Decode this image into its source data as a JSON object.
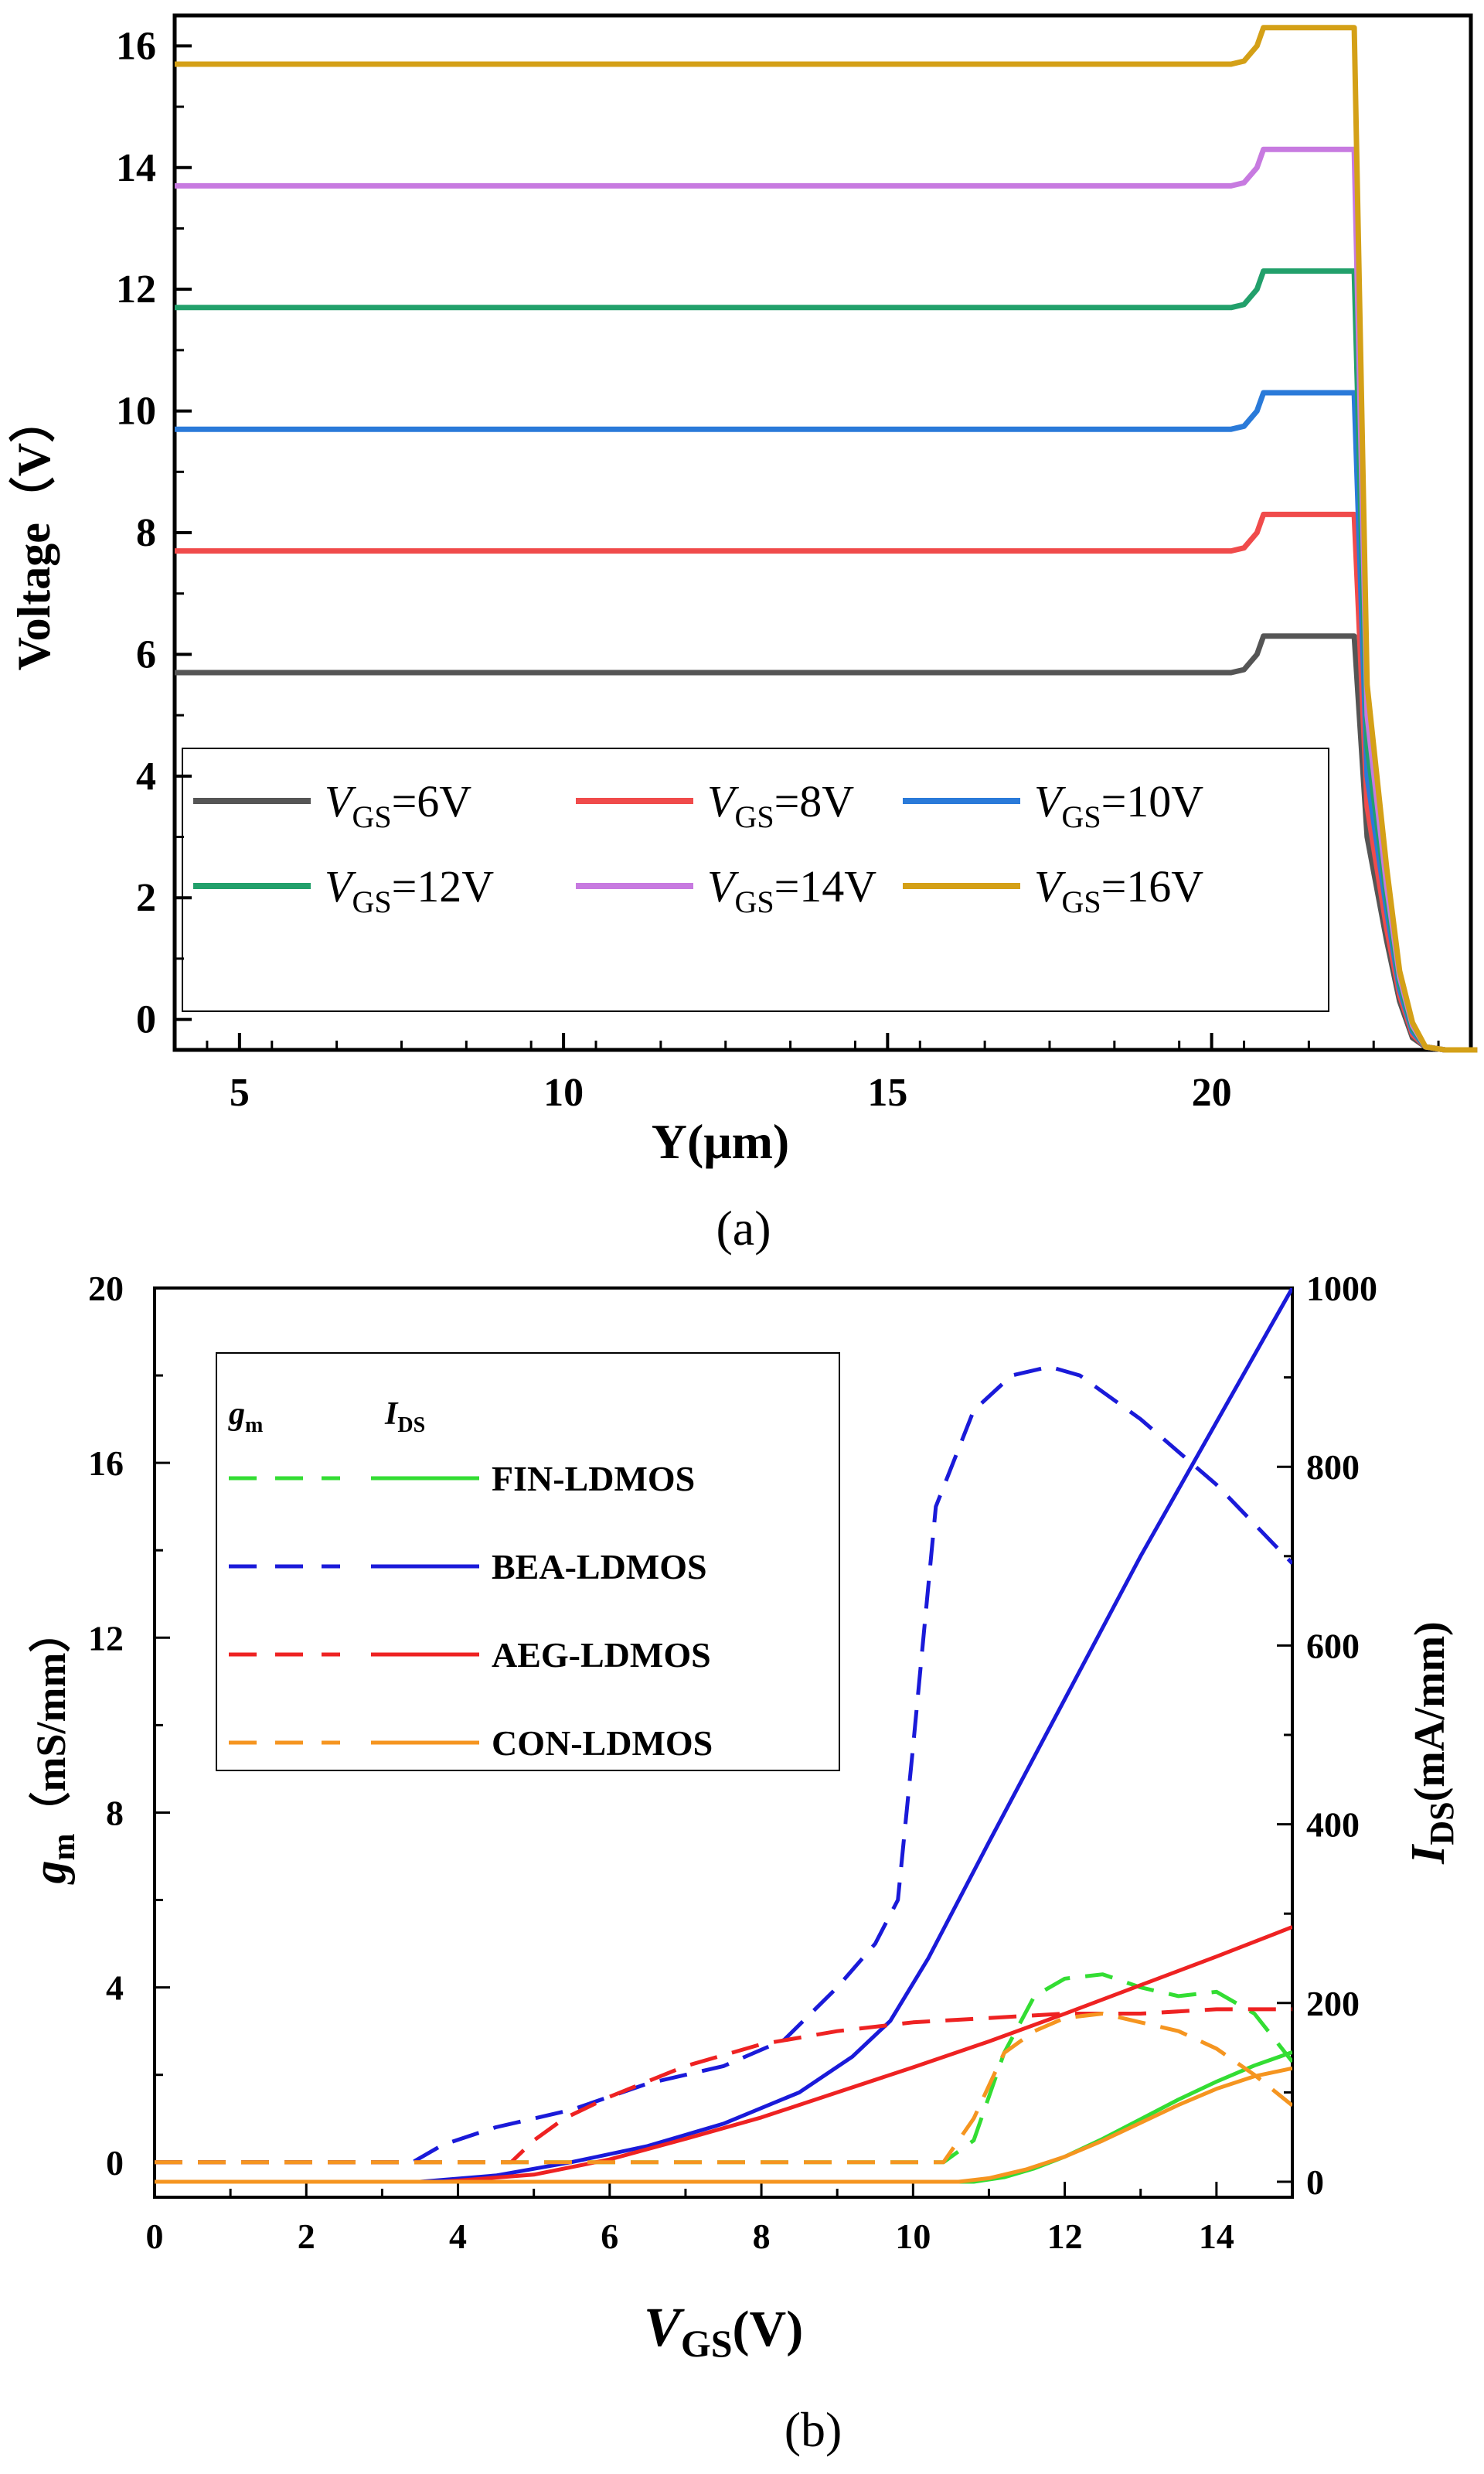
{
  "chart_data": [
    {
      "type": "line",
      "caption": "(a)",
      "xlabel": "Y(μm)",
      "ylabel": "Voltage（V）",
      "xlim": [
        4,
        24
      ],
      "ylim": [
        -0.5,
        16.5
      ],
      "xticks": [
        5,
        10,
        15,
        20
      ],
      "yticks": [
        0,
        2,
        4,
        6,
        8,
        10,
        12,
        14,
        16
      ],
      "xtick_labels": [
        "5",
        "10",
        "15",
        "20"
      ],
      "ytick_labels": [
        "0",
        "2",
        "4",
        "6",
        "8",
        "10",
        "12",
        "14",
        "16"
      ],
      "legend_position": "bottom-left",
      "series": [
        {
          "name": "VGS=6V",
          "label_var": "V",
          "label_sub": "GS",
          "label_rest": "=6V",
          "color": "#555555",
          "x": [
            4,
            20.3,
            20.5,
            20.7,
            20.8,
            22.2,
            22.4,
            22.7,
            22.9,
            23.1,
            23.3,
            23.6,
            24.1
          ],
          "y": [
            5.7,
            5.7,
            5.75,
            6.0,
            6.3,
            6.3,
            3.0,
            1.3,
            0.3,
            -0.3,
            -0.45,
            -0.5,
            -0.5
          ]
        },
        {
          "name": "VGS=8V",
          "label_var": "V",
          "label_sub": "GS",
          "label_rest": "=8V",
          "color": "#f04b4b",
          "x": [
            4,
            20.3,
            20.5,
            20.7,
            20.8,
            22.2,
            22.4,
            22.7,
            22.9,
            23.1,
            23.3,
            23.6,
            24.1
          ],
          "y": [
            7.7,
            7.7,
            7.75,
            8.0,
            8.3,
            8.3,
            3.5,
            1.5,
            0.4,
            -0.25,
            -0.45,
            -0.5,
            -0.5
          ]
        },
        {
          "name": "VGS=10V",
          "label_var": "V",
          "label_sub": "GS",
          "label_rest": "=10V",
          "color": "#2a7ad9",
          "x": [
            4,
            20.3,
            20.5,
            20.7,
            20.8,
            22.2,
            22.4,
            22.7,
            22.9,
            23.1,
            23.3,
            23.6,
            24.1
          ],
          "y": [
            9.7,
            9.7,
            9.75,
            10.0,
            10.3,
            10.3,
            4.0,
            1.8,
            0.5,
            -0.2,
            -0.45,
            -0.5,
            -0.5
          ]
        },
        {
          "name": "VGS=12V",
          "label_var": "V",
          "label_sub": "GS",
          "label_rest": "=12V",
          "color": "#22a06b",
          "x": [
            4,
            20.3,
            20.5,
            20.7,
            20.8,
            22.2,
            22.4,
            22.7,
            22.9,
            23.1,
            23.3,
            23.6,
            24.1
          ],
          "y": [
            11.7,
            11.7,
            11.75,
            12.0,
            12.3,
            12.3,
            4.5,
            2.0,
            0.6,
            -0.15,
            -0.45,
            -0.5,
            -0.5
          ]
        },
        {
          "name": "VGS=14V",
          "label_var": "V",
          "label_sub": "GS",
          "label_rest": "=14V",
          "color": "#c77ae0",
          "x": [
            4,
            20.3,
            20.5,
            20.7,
            20.8,
            22.2,
            22.4,
            22.7,
            22.9,
            23.1,
            23.3,
            23.6,
            24.1
          ],
          "y": [
            13.7,
            13.7,
            13.75,
            14.0,
            14.3,
            14.3,
            5.0,
            2.2,
            0.7,
            -0.1,
            -0.45,
            -0.5,
            -0.5
          ]
        },
        {
          "name": "VGS=16V",
          "label_var": "V",
          "label_sub": "GS",
          "label_rest": "=16V",
          "color": "#d4a017",
          "x": [
            4,
            20.3,
            20.5,
            20.7,
            20.8,
            22.2,
            22.4,
            22.7,
            22.9,
            23.1,
            23.3,
            23.6,
            24.1
          ],
          "y": [
            15.7,
            15.7,
            15.75,
            16.0,
            16.3,
            16.3,
            5.5,
            2.5,
            0.8,
            -0.05,
            -0.45,
            -0.5,
            -0.5
          ]
        }
      ]
    },
    {
      "type": "line",
      "caption": "(b)",
      "xlabel": "VGS(V)",
      "xlabel_var": "V",
      "xlabel_sub": "GS",
      "xlabel_rest": "(V)",
      "ylabel_left": "gm（mS/mm）",
      "ylabel_left_var": "g",
      "ylabel_left_sub": "m",
      "ylabel_left_rest": "（mS/mm）",
      "ylabel_right": "IDS(mA/mm)",
      "ylabel_right_var": "I",
      "ylabel_right_sub": "DS",
      "ylabel_right_rest": "(mA/mm)",
      "xlim": [
        0,
        15
      ],
      "ylim_left": [
        -0.8,
        20
      ],
      "ylim_right": [
        0,
        1000
      ],
      "xticks": [
        0,
        2,
        4,
        6,
        8,
        10,
        12,
        14
      ],
      "xtick_labels": [
        "0",
        "2",
        "4",
        "6",
        "8",
        "10",
        "12",
        "14"
      ],
      "yticks_left": [
        0,
        4,
        8,
        12,
        16,
        20
      ],
      "ytick_labels_left": [
        "0",
        "4",
        "8",
        "12",
        "16",
        "20"
      ],
      "yticks_right": [
        0,
        200,
        400,
        600,
        800,
        1000
      ],
      "ytick_labels_right": [
        "0",
        "200",
        "400",
        "600",
        "800",
        "1000"
      ],
      "legend_position": "top-left",
      "legend_header_gm_var": "g",
      "legend_header_gm_sub": "m",
      "legend_header_ids_var": "I",
      "legend_header_ids_sub": "DS",
      "series": [
        {
          "name": "FIN-LDMOS",
          "color": "#33dd33",
          "gm": {
            "x": [
              0,
              10.4,
              10.8,
              11.2,
              11.6,
              12.0,
              12.5,
              13.0,
              13.5,
              14.0,
              14.5,
              15.0
            ],
            "y": [
              0,
              0,
              0.5,
              2.5,
              3.8,
              4.2,
              4.3,
              4.0,
              3.8,
              3.9,
              3.4,
              2.3
            ]
          },
          "ids": {
            "x": [
              0,
              10.8,
              11.2,
              11.6,
              12.0,
              12.5,
              13.0,
              13.5,
              14.0,
              14.5,
              15.0
            ],
            "y": [
              0,
              0,
              5,
              15,
              28,
              48,
              70,
              92,
              112,
              130,
              145
            ]
          }
        },
        {
          "name": "BEA-LDMOS",
          "color": "#1a1ad9",
          "gm": {
            "x": [
              0,
              3.4,
              3.8,
              4.5,
              5.5,
              6.5,
              7.5,
              8.3,
              9.0,
              9.5,
              9.8,
              10.0,
              10.3,
              10.8,
              11.3,
              11.8,
              12.2,
              13.0,
              14.0,
              15.0
            ],
            "y": [
              0,
              0,
              0.4,
              0.8,
              1.2,
              1.8,
              2.2,
              2.8,
              4.0,
              5.0,
              6.0,
              9.5,
              15.0,
              17.2,
              18.0,
              18.2,
              18.0,
              17.0,
              15.5,
              13.7
            ]
          },
          "ids": {
            "x": [
              0,
              3.5,
              4.5,
              5.5,
              6.5,
              7.5,
              8.5,
              9.2,
              9.7,
              10.2,
              11.0,
              12.0,
              13.0,
              14.0,
              15.0
            ],
            "y": [
              0,
              0,
              7,
              22,
              40,
              65,
              100,
              140,
              180,
              250,
              380,
              540,
              700,
              850,
              1000
            ]
          }
        },
        {
          "name": "AEG-LDMOS",
          "color": "#ee2222",
          "gm": {
            "x": [
              0,
              4.7,
              5.0,
              5.4,
              6.0,
              7.0,
              8.0,
              9.0,
              10.0,
              11.0,
              12.0,
              13.0,
              14.0,
              15.0
            ],
            "y": [
              0,
              0,
              0.5,
              1.0,
              1.5,
              2.2,
              2.7,
              3.0,
              3.2,
              3.3,
              3.4,
              3.4,
              3.5,
              3.5
            ]
          },
          "ids": {
            "x": [
              0,
              3.8,
              5.0,
              6.0,
              7.0,
              8.0,
              9.0,
              10.0,
              11.0,
              12.0,
              13.0,
              14.0,
              15.0
            ],
            "y": [
              0,
              0,
              8,
              25,
              48,
              72,
              100,
              128,
              157,
              188,
              220,
              252,
              285
            ]
          }
        },
        {
          "name": "CON-LDMOS",
          "color": "#f59520",
          "gm": {
            "x": [
              0,
              10.4,
              10.8,
              11.2,
              11.6,
              12.0,
              12.5,
              13.0,
              13.5,
              14.0,
              14.5,
              15.0
            ],
            "y": [
              0,
              0,
              1.0,
              2.5,
              3.0,
              3.3,
              3.4,
              3.2,
              3.0,
              2.6,
              2.0,
              1.3
            ]
          },
          "ids": {
            "x": [
              0,
              10.6,
              11.0,
              11.5,
              12.0,
              12.5,
              13.0,
              13.5,
              14.0,
              14.5,
              15.0
            ],
            "y": [
              0,
              0,
              4,
              14,
              28,
              46,
              66,
              86,
              104,
              118,
              127
            ]
          }
        }
      ]
    }
  ]
}
